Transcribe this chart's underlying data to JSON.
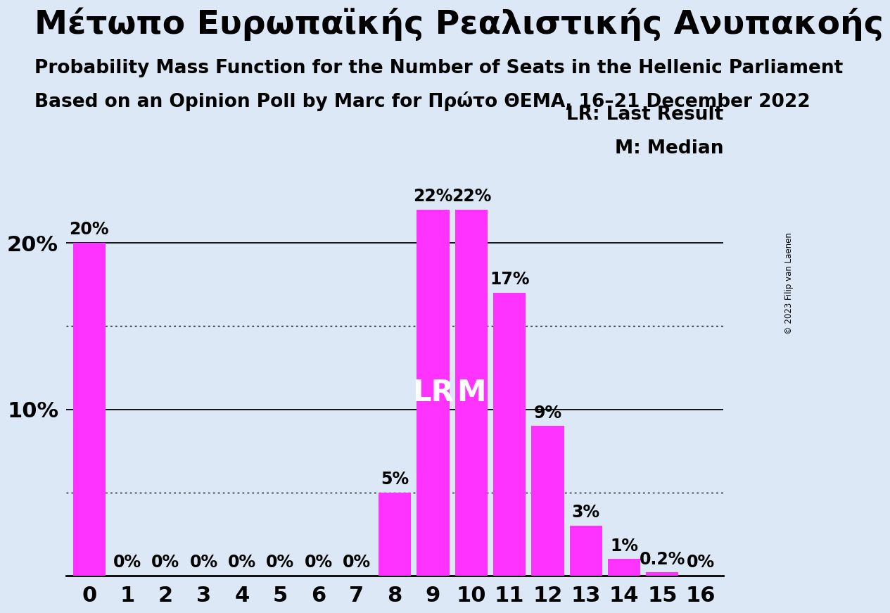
{
  "title_greek": "Μέτωπο Ευρωπαϊκής Ρεαλιστικής Ανυπακοής",
  "subtitle1": "Probability Mass Function for the Number of Seats in the Hellenic Parliament",
  "subtitle2": "Based on an Opinion Poll by Marc for Πρώτο ΘΕΜΑ, 16–21 December 2022",
  "copyright": "© 2023 Filip van Laenen",
  "categories": [
    0,
    1,
    2,
    3,
    4,
    5,
    6,
    7,
    8,
    9,
    10,
    11,
    12,
    13,
    14,
    15,
    16
  ],
  "values": [
    20,
    0,
    0,
    0,
    0,
    0,
    0,
    0,
    5,
    22,
    22,
    17,
    9,
    3,
    1.0,
    0.2,
    0
  ],
  "bar_color": "#FF33FF",
  "background_color": "#dce8f5",
  "text_color": "#000000",
  "bar_label_color": "#000000",
  "lr_bar": 9,
  "median_bar": 10,
  "lr_label": "LR",
  "median_label": "M",
  "legend_lr": "LR: Last Result",
  "legend_m": "M: Median",
  "ylim": [
    0,
    25
  ],
  "solid_gridlines": [
    10,
    20
  ],
  "dotted_gridlines": [
    5,
    15
  ],
  "ytick_positions": [
    10,
    20
  ],
  "ytick_labels": [
    "10%",
    "20%"
  ],
  "xlabel_fontsize": 22,
  "ylabel_fontsize": 22,
  "title_fontsize": 34,
  "subtitle_fontsize": 19,
  "bar_label_fontsize": 17,
  "legend_fontsize": 19,
  "annotation_fontsize": 30
}
